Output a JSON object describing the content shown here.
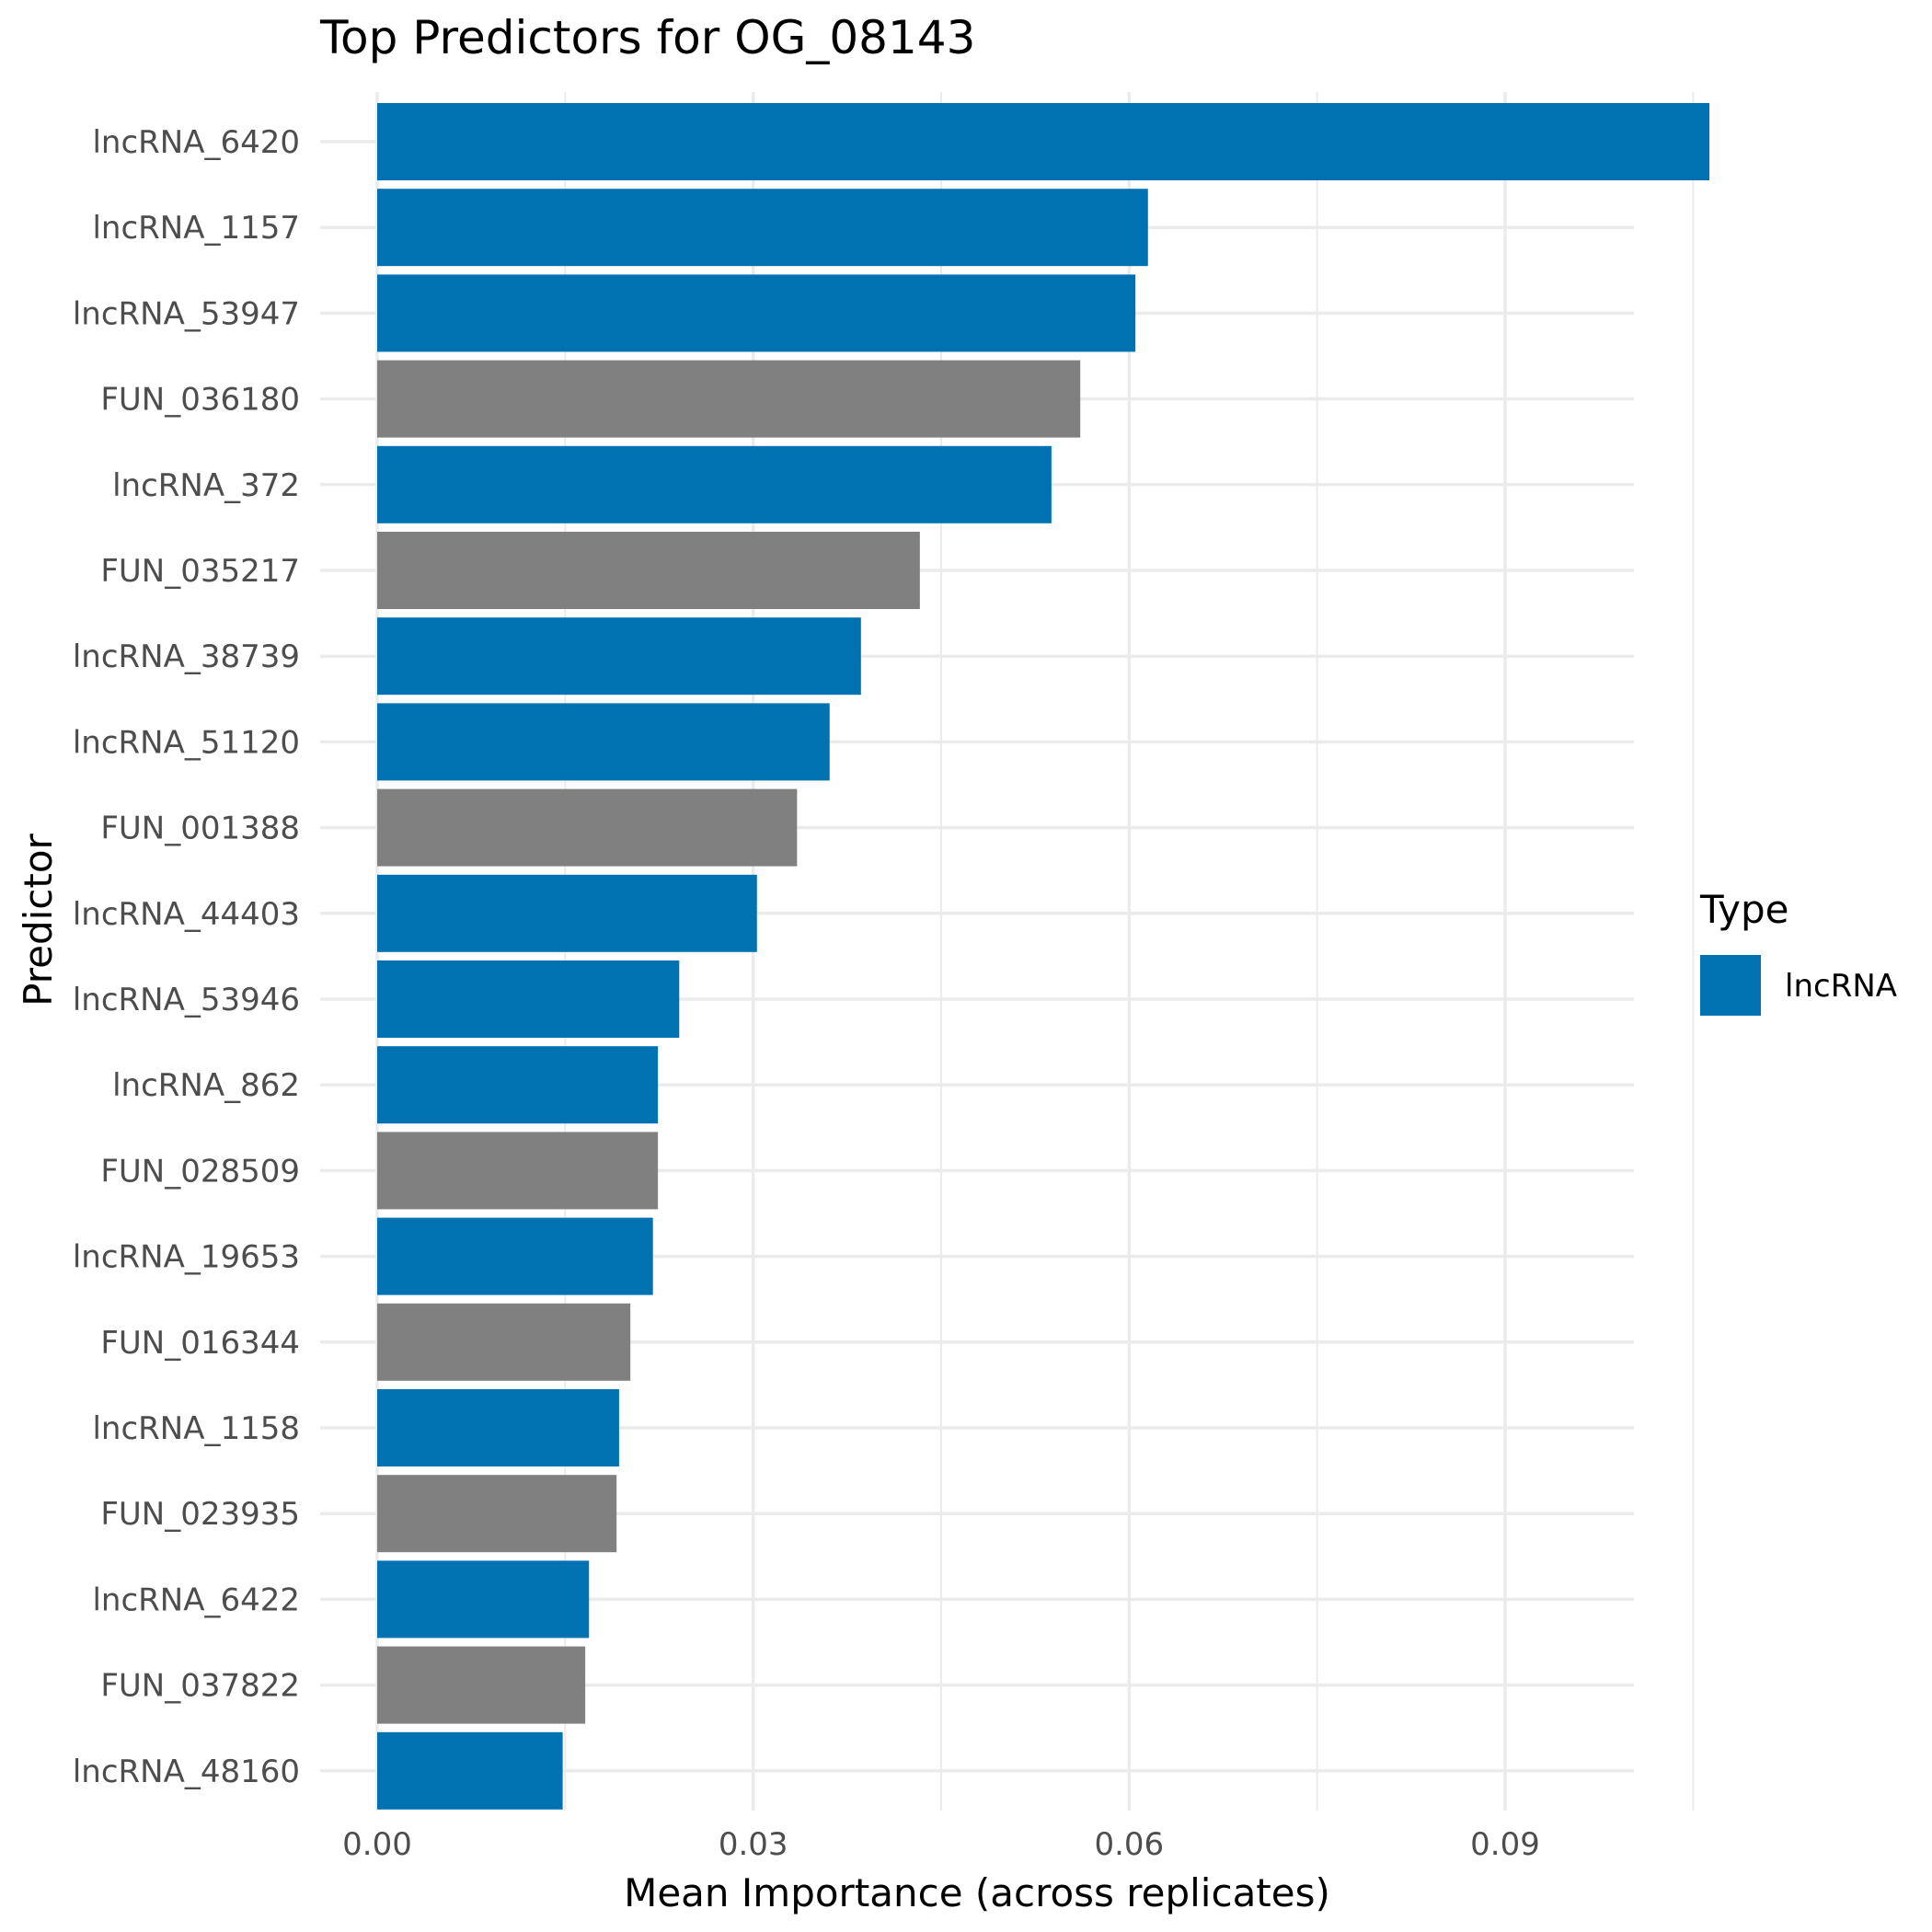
{
  "chart_data": {
    "type": "bar",
    "orientation": "horizontal",
    "title": "Top Predictors for OG_08143",
    "xlabel": "Mean Importance (across replicates)",
    "ylabel": "Predictor",
    "xlim": [
      0,
      0.1125
    ],
    "xticks": [
      "0.00",
      "0.03",
      "0.06",
      "0.09"
    ],
    "xtick_values": [
      0,
      0.03,
      0.06,
      0.09
    ],
    "grid": true,
    "categories": [
      "lncRNA_6420",
      "lncRNA_1157",
      "lncRNA_53947",
      "FUN_036180",
      "lncRNA_372",
      "FUN_035217",
      "lncRNA_38739",
      "lncRNA_51120",
      "FUN_001388",
      "lncRNA_44403",
      "lncRNA_53946",
      "lncRNA_862",
      "FUN_028509",
      "lncRNA_19653",
      "FUN_016344",
      "lncRNA_1158",
      "FUN_023935",
      "lncRNA_6422",
      "FUN_037822",
      "lncRNA_48160"
    ],
    "values": [
      0.1063,
      0.0615,
      0.0605,
      0.0561,
      0.0538,
      0.0433,
      0.0386,
      0.0361,
      0.0335,
      0.0303,
      0.0241,
      0.0224,
      0.0224,
      0.022,
      0.0202,
      0.0193,
      0.0191,
      0.0169,
      0.0166,
      0.0148
    ],
    "types": [
      "lncRNA",
      "lncRNA",
      "lncRNA",
      "FUN",
      "lncRNA",
      "FUN",
      "lncRNA",
      "lncRNA",
      "FUN",
      "lncRNA",
      "lncRNA",
      "lncRNA",
      "FUN",
      "lncRNA",
      "FUN",
      "lncRNA",
      "FUN",
      "lncRNA",
      "FUN",
      "lncRNA"
    ],
    "colors": {
      "lncRNA": "#0072B2",
      "FUN": "#808080"
    },
    "legend": {
      "title": "Type",
      "entries": [
        {
          "label": "lncRNA",
          "color": "#0072B2"
        }
      ],
      "position": "right"
    }
  }
}
